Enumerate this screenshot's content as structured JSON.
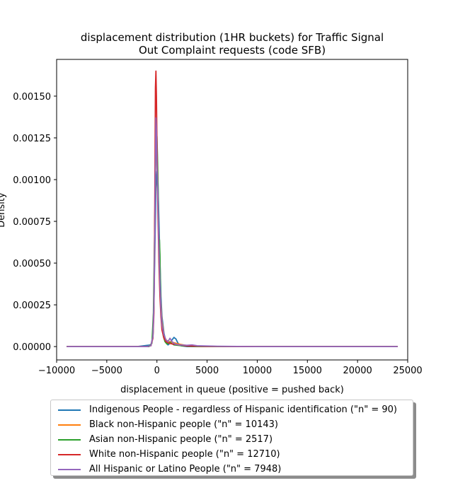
{
  "chart_data": {
    "type": "line",
    "title": "displacement distribution (1HR buckets) for Traffic Signal Out Complaint requests (code SFB)",
    "title_lines": [
      "displacement distribution (1HR buckets) for Traffic Signal",
      "Out Complaint requests (code SFB)"
    ],
    "xlabel": "displacement in queue (positive = pushed back)",
    "ylabel": "Density",
    "xlim": [
      -10000,
      25000
    ],
    "ylim": [
      -8e-05,
      0.00172
    ],
    "xticks": [
      -10000,
      -5000,
      0,
      5000,
      10000,
      15000,
      20000,
      25000
    ],
    "xtick_labels": [
      "−10000",
      "−5000",
      "0",
      "5000",
      "10000",
      "15000",
      "20000",
      "25000"
    ],
    "yticks": [
      0,
      0.00025,
      0.0005,
      0.00075,
      0.001,
      0.00125,
      0.0015
    ],
    "ytick_labels": [
      "0.00000",
      "0.00025",
      "0.00050",
      "0.00075",
      "0.00100",
      "0.00125",
      "0.00150"
    ],
    "grid": false,
    "legend_position": "below",
    "series": [
      {
        "name": "Indigenous People - regardless of Hispanic identification (\"n\" = 90)",
        "color": "#1f77b4",
        "x": [
          -9000,
          -2000,
          -600,
          -400,
          -300,
          -200,
          -100,
          0,
          100,
          200,
          300,
          400,
          500,
          700,
          900,
          1100,
          1300,
          1500,
          1700,
          1900,
          2100,
          2400,
          3000,
          5000,
          10000,
          24000
        ],
        "y": [
          0,
          0,
          1e-05,
          6e-05,
          0.00025,
          0.0006,
          0.00095,
          0.00105,
          0.00098,
          0.00075,
          0.0005,
          0.0003,
          0.00018,
          8e-05,
          3e-05,
          1e-05,
          2e-05,
          4e-05,
          5.5e-05,
          4.5e-05,
          2e-05,
          5e-06,
          0,
          0,
          0,
          0
        ]
      },
      {
        "name": "Black non-Hispanic people (\"n\" = 10143)",
        "color": "#ff7f0e",
        "x": [
          -9000,
          -3000,
          -1000,
          -600,
          -400,
          -300,
          -200,
          -100,
          0,
          50,
          100,
          200,
          300,
          400,
          500,
          700,
          900,
          1200,
          1600,
          2200,
          3000,
          4000,
          6000,
          10000,
          24000
        ],
        "y": [
          0,
          0,
          0,
          5e-06,
          6e-05,
          0.0003,
          0.0008,
          0.00125,
          0.0012,
          0.00105,
          0.0009,
          0.0006,
          0.0004,
          0.00025,
          0.00015,
          7e-05,
          4e-05,
          3e-05,
          2.5e-05,
          1.5e-05,
          6e-06,
          3e-06,
          1e-06,
          0,
          0
        ]
      },
      {
        "name": "Asian non-Hispanic people (\"n\" = 2517)",
        "color": "#2ca02c",
        "x": [
          -9000,
          -3000,
          -800,
          -500,
          -350,
          -250,
          -150,
          -100,
          -50,
          0,
          50,
          100,
          200,
          250,
          300,
          350,
          400,
          500,
          650,
          800,
          1000,
          1300,
          1700,
          2500,
          4000,
          10000,
          24000
        ],
        "y": [
          0,
          0,
          0,
          2e-05,
          0.0002,
          0.0006,
          0.00105,
          0.00118,
          0.00122,
          0.00126,
          0.00115,
          0.001,
          0.00062,
          0.00064,
          0.00055,
          0.00035,
          0.0002,
          0.00012,
          6e-05,
          3e-05,
          1.5e-05,
          2.5e-05,
          1e-05,
          5e-06,
          0,
          0,
          0
        ]
      },
      {
        "name": "White non-Hispanic people (\"n\" = 12710)",
        "color": "#d62728",
        "x": [
          -9000,
          -3000,
          -1000,
          -600,
          -400,
          -300,
          -250,
          -200,
          -150,
          -100,
          -50,
          0,
          50,
          100,
          200,
          300,
          400,
          500,
          700,
          900,
          1200,
          1600,
          2200,
          3000,
          5000,
          10000,
          24000
        ],
        "y": [
          0,
          0,
          0,
          5e-06,
          5e-05,
          0.0002,
          0.0005,
          0.001,
          0.00155,
          0.00165,
          0.0015,
          0.00125,
          0.001,
          0.0008,
          0.0005,
          0.0003,
          0.00018,
          0.0001,
          5e-05,
          3e-05,
          2e-05,
          1.5e-05,
          1e-05,
          4e-06,
          1e-06,
          0,
          0
        ]
      },
      {
        "name": "All Hispanic or Latino People (\"n\" = 7948)",
        "color": "#9467bd",
        "x": [
          -9000,
          -3000,
          -1000,
          -600,
          -400,
          -300,
          -200,
          -150,
          -100,
          -50,
          0,
          50,
          100,
          200,
          300,
          400,
          500,
          700,
          900,
          1100,
          1300,
          1500,
          1800,
          2200,
          3000,
          3500,
          4000,
          6000,
          10000,
          24000
        ],
        "y": [
          0,
          0,
          0,
          5e-06,
          6e-05,
          0.00025,
          0.0007,
          0.0011,
          0.00137,
          0.0013,
          0.0011,
          0.001,
          0.0009,
          0.0006,
          0.00038,
          0.00022,
          0.00013,
          7e-05,
          4e-05,
          3e-05,
          5e-05,
          3e-05,
          1.5e-05,
          1e-05,
          8e-06,
          1e-05,
          5e-06,
          2e-06,
          0,
          0
        ]
      }
    ]
  }
}
